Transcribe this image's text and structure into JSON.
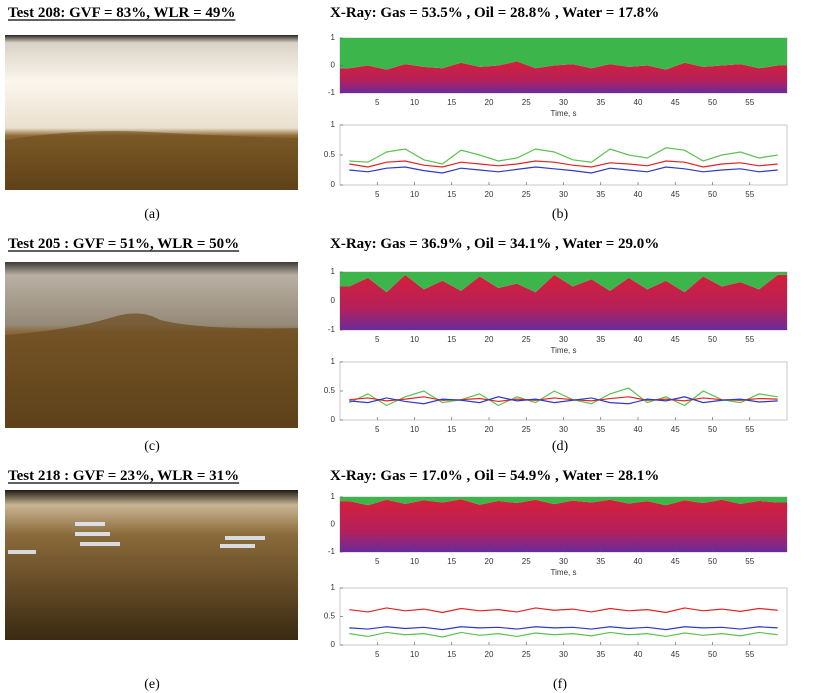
{
  "panels": [
    {
      "photo_title": "Test 208: GVF = 83%, WLR = 49%",
      "photo_label": "(a)",
      "xray_title": "X-Ray: Gas = 53.5% , Oil = 28.8% , Water = 17.8%",
      "chart_label": "(b)"
    },
    {
      "photo_title": "Test 205 : GVF = 51%, WLR = 50%",
      "photo_label": "(c)",
      "xray_title": "X-Ray: Gas = 36.9% , Oil = 34.1% , Water = 29.0%",
      "chart_label": "(d)"
    },
    {
      "photo_title": "Test 218 : GVF = 23%, WLR = 31%",
      "photo_label": "(e)",
      "xray_title": "X-Ray: Gas = 17.0% , Oil = 54.9% , Water = 28.1%",
      "chart_label": "(f)"
    }
  ],
  "chart_data": [
    {
      "type": "area",
      "x_label": "Time, s",
      "xlim": [
        0,
        60
      ],
      "xticks": [
        5,
        10,
        15,
        20,
        25,
        30,
        35,
        40,
        45,
        50,
        55
      ],
      "ylim": [
        -1,
        1
      ],
      "yticks": [
        -1,
        0,
        1
      ],
      "x": [
        1.25,
        3.75,
        6.25,
        8.75,
        11.25,
        13.75,
        16.25,
        18.75,
        21.25,
        23.75,
        26.25,
        28.75,
        31.25,
        33.75,
        36.25,
        38.75,
        41.25,
        43.75,
        46.25,
        48.75,
        51.25,
        53.75,
        56.25,
        58.75
      ],
      "series": [
        {
          "color": "#3cb64a",
          "values": [
            -0.1,
            0.0,
            -0.15,
            0.05,
            -0.05,
            -0.1,
            0.1,
            -0.05,
            0.0,
            0.15,
            -0.1,
            0.0,
            0.05,
            -0.1,
            0.05,
            -0.05,
            0.0,
            -0.15,
            0.1,
            -0.05,
            0.0,
            0.05,
            -0.1,
            0.0
          ]
        }
      ]
    },
    {
      "type": "line",
      "xlim": [
        0,
        60
      ],
      "xticks": [
        5,
        10,
        15,
        20,
        25,
        30,
        35,
        40,
        45,
        50,
        55
      ],
      "ylim": [
        0,
        1
      ],
      "yticks": [
        0,
        0.5,
        1
      ],
      "x": [
        1.25,
        3.75,
        6.25,
        8.75,
        11.25,
        13.75,
        16.25,
        18.75,
        21.25,
        23.75,
        26.25,
        28.75,
        31.25,
        33.75,
        36.25,
        38.75,
        41.25,
        43.75,
        46.25,
        48.75,
        51.25,
        53.75,
        56.25,
        58.75
      ],
      "series": [
        {
          "color": "#5cc24f",
          "values": [
            0.4,
            0.38,
            0.55,
            0.6,
            0.42,
            0.35,
            0.58,
            0.5,
            0.4,
            0.45,
            0.6,
            0.55,
            0.42,
            0.38,
            0.6,
            0.5,
            0.45,
            0.62,
            0.58,
            0.4,
            0.5,
            0.55,
            0.45,
            0.5
          ]
        },
        {
          "color": "#e02424",
          "values": [
            0.35,
            0.3,
            0.38,
            0.4,
            0.33,
            0.3,
            0.38,
            0.35,
            0.32,
            0.35,
            0.4,
            0.38,
            0.33,
            0.3,
            0.37,
            0.35,
            0.32,
            0.4,
            0.38,
            0.3,
            0.35,
            0.37,
            0.32,
            0.35
          ]
        },
        {
          "color": "#2b3bc4",
          "values": [
            0.25,
            0.22,
            0.28,
            0.3,
            0.24,
            0.2,
            0.28,
            0.25,
            0.22,
            0.26,
            0.3,
            0.27,
            0.24,
            0.2,
            0.28,
            0.25,
            0.22,
            0.3,
            0.27,
            0.22,
            0.25,
            0.27,
            0.22,
            0.25
          ]
        }
      ]
    },
    {
      "type": "area",
      "x_label": "Time, s",
      "xlim": [
        0,
        60
      ],
      "xticks": [
        5,
        10,
        15,
        20,
        25,
        30,
        35,
        40,
        45,
        50,
        55
      ],
      "ylim": [
        -1,
        1
      ],
      "yticks": [
        -1,
        0,
        1
      ],
      "x": [
        1.25,
        3.75,
        6.25,
        8.75,
        11.25,
        13.75,
        16.25,
        18.75,
        21.25,
        23.75,
        26.25,
        28.75,
        31.25,
        33.75,
        36.25,
        38.75,
        41.25,
        43.75,
        46.25,
        48.75,
        51.25,
        53.75,
        56.25,
        58.75
      ],
      "series": [
        {
          "color": "#3cb64a",
          "values": [
            0.5,
            0.8,
            0.3,
            0.9,
            0.4,
            0.7,
            0.35,
            0.85,
            0.45,
            0.6,
            0.3,
            0.9,
            0.5,
            0.75,
            0.35,
            0.8,
            0.4,
            0.7,
            0.3,
            0.85,
            0.5,
            0.65,
            0.4,
            0.9
          ]
        }
      ]
    },
    {
      "type": "line",
      "xlim": [
        0,
        60
      ],
      "xticks": [
        5,
        10,
        15,
        20,
        25,
        30,
        35,
        40,
        45,
        50,
        55
      ],
      "ylim": [
        0,
        1
      ],
      "yticks": [
        0,
        0.5,
        1
      ],
      "x": [
        1.25,
        3.75,
        6.25,
        8.75,
        11.25,
        13.75,
        16.25,
        18.75,
        21.25,
        23.75,
        26.25,
        28.75,
        31.25,
        33.75,
        36.25,
        38.75,
        41.25,
        43.75,
        46.25,
        48.75,
        51.25,
        53.75,
        56.25,
        58.75
      ],
      "series": [
        {
          "color": "#5cc24f",
          "values": [
            0.3,
            0.45,
            0.25,
            0.4,
            0.5,
            0.3,
            0.35,
            0.45,
            0.25,
            0.4,
            0.3,
            0.5,
            0.35,
            0.28,
            0.45,
            0.55,
            0.3,
            0.4,
            0.25,
            0.5,
            0.35,
            0.3,
            0.45,
            0.4
          ]
        },
        {
          "color": "#e02424",
          "values": [
            0.35,
            0.38,
            0.33,
            0.36,
            0.4,
            0.34,
            0.35,
            0.37,
            0.32,
            0.36,
            0.34,
            0.38,
            0.35,
            0.33,
            0.37,
            0.4,
            0.34,
            0.36,
            0.33,
            0.38,
            0.35,
            0.34,
            0.37,
            0.36
          ]
        },
        {
          "color": "#2b3bc4",
          "values": [
            0.33,
            0.3,
            0.38,
            0.32,
            0.28,
            0.36,
            0.34,
            0.3,
            0.4,
            0.33,
            0.36,
            0.3,
            0.34,
            0.38,
            0.3,
            0.28,
            0.36,
            0.33,
            0.4,
            0.3,
            0.34,
            0.36,
            0.31,
            0.33
          ]
        }
      ]
    },
    {
      "type": "area",
      "x_label": "Time, s",
      "xlim": [
        0,
        60
      ],
      "xticks": [
        5,
        10,
        15,
        20,
        25,
        30,
        35,
        40,
        45,
        50,
        55
      ],
      "ylim": [
        -1,
        1
      ],
      "yticks": [
        -1,
        0,
        1
      ],
      "x": [
        1.25,
        3.75,
        6.25,
        8.75,
        11.25,
        13.75,
        16.25,
        18.75,
        21.25,
        23.75,
        26.25,
        28.75,
        31.25,
        33.75,
        36.25,
        38.75,
        41.25,
        43.75,
        46.25,
        48.75,
        51.25,
        53.75,
        56.25,
        58.75
      ],
      "series": [
        {
          "color": "#3cb64a",
          "values": [
            0.85,
            0.7,
            0.9,
            0.75,
            0.88,
            0.8,
            0.92,
            0.72,
            0.86,
            0.78,
            0.9,
            0.74,
            0.87,
            0.8,
            0.9,
            0.76,
            0.85,
            0.7,
            0.88,
            0.78,
            0.9,
            0.75,
            0.86,
            0.8
          ]
        }
      ]
    },
    {
      "type": "line",
      "xlim": [
        0,
        60
      ],
      "xticks": [
        5,
        10,
        15,
        20,
        25,
        30,
        35,
        40,
        45,
        50,
        55
      ],
      "ylim": [
        0,
        1
      ],
      "yticks": [
        0,
        0.5,
        1
      ],
      "x": [
        1.25,
        3.75,
        6.25,
        8.75,
        11.25,
        13.75,
        16.25,
        18.75,
        21.25,
        23.75,
        26.25,
        28.75,
        31.25,
        33.75,
        36.25,
        38.75,
        41.25,
        43.75,
        46.25,
        48.75,
        51.25,
        53.75,
        56.25,
        58.75
      ],
      "series": [
        {
          "color": "#5cc24f",
          "values": [
            0.2,
            0.15,
            0.22,
            0.18,
            0.2,
            0.14,
            0.22,
            0.17,
            0.2,
            0.15,
            0.21,
            0.18,
            0.2,
            0.16,
            0.22,
            0.18,
            0.2,
            0.15,
            0.21,
            0.17,
            0.2,
            0.16,
            0.22,
            0.18
          ]
        },
        {
          "color": "#e02424",
          "values": [
            0.62,
            0.58,
            0.65,
            0.6,
            0.63,
            0.57,
            0.64,
            0.6,
            0.62,
            0.58,
            0.65,
            0.61,
            0.63,
            0.58,
            0.64,
            0.6,
            0.62,
            0.57,
            0.65,
            0.6,
            0.63,
            0.59,
            0.64,
            0.61
          ]
        },
        {
          "color": "#2b3bc4",
          "values": [
            0.3,
            0.28,
            0.32,
            0.29,
            0.31,
            0.27,
            0.32,
            0.3,
            0.31,
            0.28,
            0.32,
            0.3,
            0.31,
            0.28,
            0.32,
            0.29,
            0.31,
            0.27,
            0.32,
            0.3,
            0.31,
            0.28,
            0.32,
            0.3
          ]
        }
      ]
    }
  ]
}
